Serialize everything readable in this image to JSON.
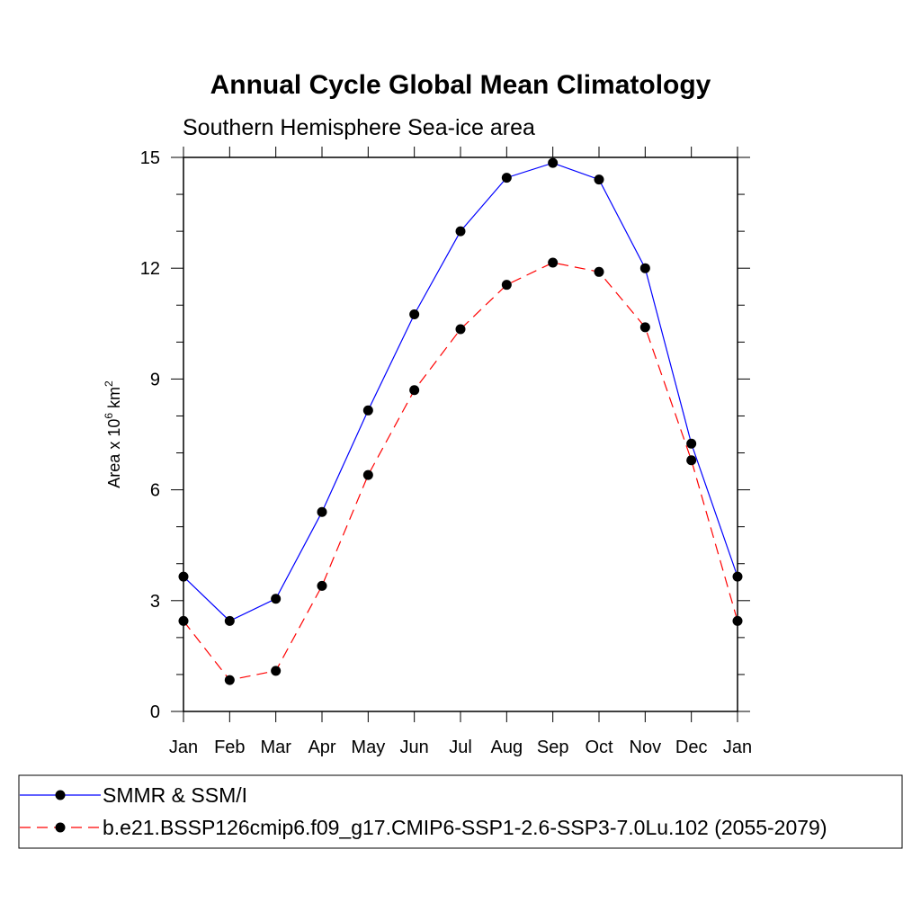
{
  "chart_data": {
    "type": "line",
    "title": "Annual Cycle Global Mean Climatology",
    "subtitle": "Southern Hemisphere Sea-ice area",
    "ylabel": {
      "base": "Area x 10",
      "exp": "6",
      "unit": " km",
      "unit_exp": "2"
    },
    "xlabel": "",
    "categories": [
      "Jan",
      "Feb",
      "Mar",
      "Apr",
      "May",
      "Jun",
      "Jul",
      "Aug",
      "Sep",
      "Oct",
      "Nov",
      "Dec",
      "Jan"
    ],
    "ylim": [
      0,
      15
    ],
    "yticks": [
      "0",
      "3",
      "6",
      "9",
      "12",
      "15"
    ],
    "grid": false,
    "legend_placement": "bottom",
    "series": [
      {
        "name": "SMMR & SSM/I",
        "color": "#0000ff",
        "dash": "solid",
        "values": [
          3.65,
          2.45,
          3.05,
          5.4,
          8.15,
          10.75,
          13.0,
          14.45,
          14.85,
          14.4,
          12.0,
          7.25,
          3.65
        ]
      },
      {
        "name": "b.e21.BSSP126cmip6.f09_g17.CMIP6-SSP1-2.6-SSP3-7.0Lu.102 (2055-2079)",
        "color": "#ff0000",
        "dash": "dashed",
        "values": [
          2.45,
          0.85,
          1.1,
          3.4,
          6.4,
          8.7,
          10.35,
          11.55,
          12.15,
          11.9,
          10.4,
          6.8,
          2.45
        ]
      }
    ]
  }
}
